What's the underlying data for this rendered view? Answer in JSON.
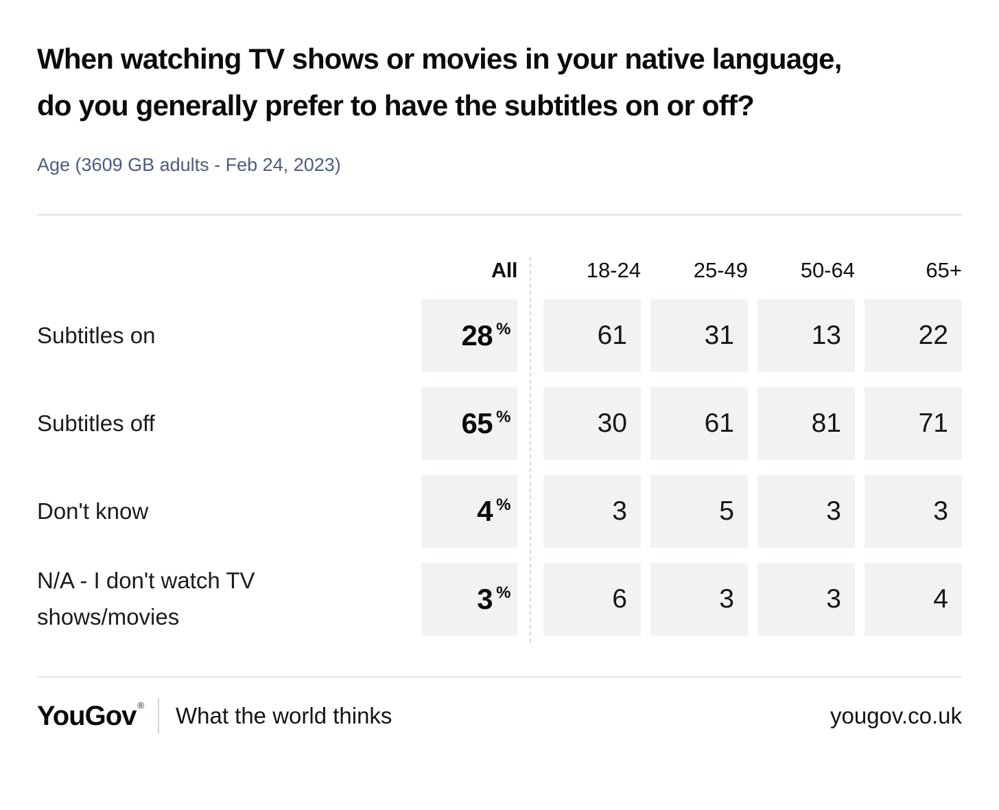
{
  "header": {
    "title": "When watching TV shows or movies in your native language,\ndo you generally prefer to have the subtitles on or off?",
    "subtitle": "Age (3609 GB adults - Feb 24, 2023)"
  },
  "chart_data": {
    "type": "table",
    "title": "When watching TV shows or movies in your native language, do you generally prefer to have the subtitles on or off?",
    "subtitle": "Age (3609 GB adults - Feb 24, 2023)",
    "sample": "3609 GB adults",
    "date": "Feb 24, 2023",
    "unit": "%",
    "columns": {
      "all": "All",
      "ages": [
        "18-24",
        "25-49",
        "50-64",
        "65+"
      ]
    },
    "rows": [
      {
        "label": "Subtitles on",
        "all": "28",
        "values": [
          "61",
          "31",
          "13",
          "22"
        ]
      },
      {
        "label": "Subtitles off",
        "all": "65",
        "values": [
          "30",
          "61",
          "81",
          "71"
        ]
      },
      {
        "label": "Don't know",
        "all": "4",
        "values": [
          "3",
          "5",
          "3",
          "3"
        ]
      },
      {
        "label": "N/A - I don't watch TV shows/movies",
        "all": "3",
        "values": [
          "6",
          "3",
          "3",
          "4"
        ]
      }
    ],
    "layout": {
      "cell_background": "#f1f2f2",
      "subtitle_color": "#4d5b7d",
      "divider_style": "dashed"
    }
  },
  "footer": {
    "logo": "YouGov",
    "registered": "®",
    "tagline": "What the world thinks",
    "url": "yougov.co.uk"
  }
}
